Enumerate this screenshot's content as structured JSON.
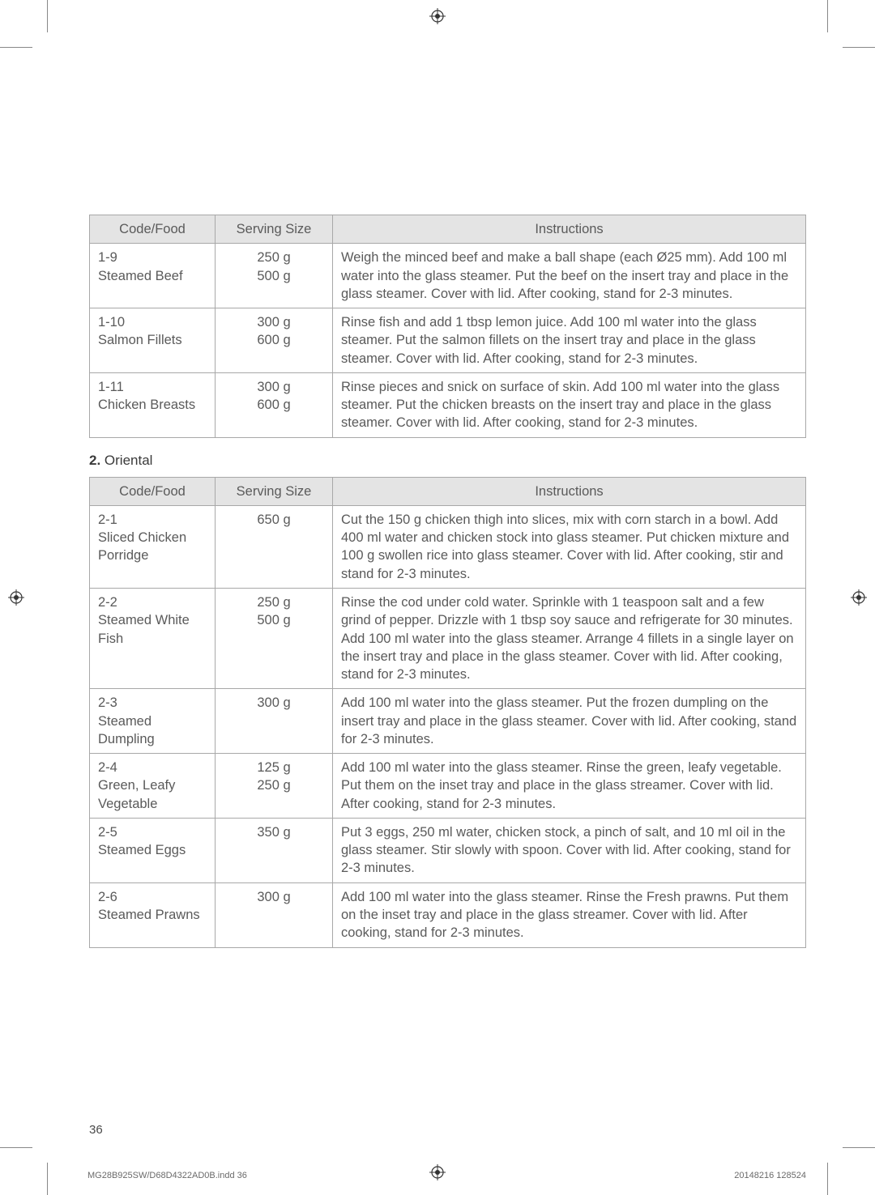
{
  "table1": {
    "headers": {
      "code": "Code/Food",
      "serving": "Serving Size",
      "instructions": "Instructions"
    },
    "rows": [
      {
        "code": "1-9\nSteamed Beef",
        "serving": "250 g\n500 g",
        "instructions": "Weigh the minced beef and make a ball shape (each Ø25 mm). Add 100 ml water into the glass steamer. Put the beef on the insert tray and place in the glass steamer. Cover with lid. After cooking, stand for 2-3 minutes."
      },
      {
        "code": "1-10\nSalmon Fillets",
        "serving": "300 g\n600 g",
        "instructions": "Rinse fish and add 1 tbsp lemon juice. Add 100 ml water into the glass steamer. Put the salmon fillets on the insert tray and place in the glass steamer. Cover with lid. After cooking, stand for 2-3 minutes."
      },
      {
        "code": "1-11\nChicken Breasts",
        "serving": "300 g\n600 g",
        "instructions": "Rinse pieces and snick on surface of skin. Add 100 ml water into the glass steamer. Put the chicken breasts on the insert tray and place in the glass steamer. Cover with lid. After cooking, stand for 2-3 minutes."
      }
    ]
  },
  "section2": {
    "number": "2.",
    "label": "Oriental"
  },
  "table2": {
    "headers": {
      "code": "Code/Food",
      "serving": "Serving Size",
      "instructions": "Instructions"
    },
    "rows": [
      {
        "code": "2-1\nSliced Chicken Porridge",
        "serving": "650 g",
        "instructions": "Cut the 150 g chicken thigh into slices, mix with corn starch in a bowl. Add 400 ml water and chicken stock into glass steamer. Put chicken mixture and 100 g swollen rice into glass steamer. Cover with lid. After cooking, stir and stand for 2-3 minutes."
      },
      {
        "code": "2-2\nSteamed White Fish",
        "serving": "250 g\n500 g",
        "instructions": "Rinse the cod under cold water. Sprinkle with 1 teaspoon salt and a few grind of pepper. Drizzle with 1 tbsp soy sauce and refrigerate for 30 minutes. Add 100 ml water into the glass steamer. Arrange 4 fillets in a single layer on the insert tray and place in the glass steamer. Cover with lid. After cooking, stand for 2-3 minutes."
      },
      {
        "code": "2-3\nSteamed Dumpling",
        "serving": "300 g",
        "instructions": "Add 100 ml water into the glass steamer. Put the frozen dumpling on the insert tray and place in the glass steamer. Cover with lid. After cooking, stand for 2-3 minutes."
      },
      {
        "code": "2-4\nGreen, Leafy Vegetable",
        "serving": "125 g\n250 g",
        "instructions": "Add 100 ml water into the glass steamer. Rinse the green, leafy vegetable. Put them on the inset tray and place in the glass streamer. Cover with lid. After cooking, stand for 2-3 minutes."
      },
      {
        "code": "2-5\nSteamed Eggs",
        "serving": "350 g",
        "instructions": "Put 3 eggs, 250 ml water, chicken stock, a pinch of salt, and 10 ml oil in the glass steamer. Stir slowly with spoon. Cover with lid. After cooking, stand for 2-3 minutes."
      },
      {
        "code": "2-6\nSteamed Prawns",
        "serving": "300 g",
        "instructions": "Add 100 ml water into the glass steamer. Rinse the Fresh prawns. Put them on the inset tray and place in the glass streamer. Cover with lid. After cooking, stand for 2-3 minutes."
      }
    ]
  },
  "pageNumber": "36",
  "footerLeft": "MG28B925SW/D68D4322AD0B.indd   36",
  "footerRight": "20148216   128524"
}
